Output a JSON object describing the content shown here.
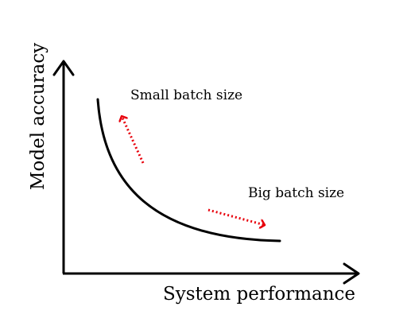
{
  "diagram": {
    "x_axis_label": "System performance",
    "y_axis_label": "Model accuracy",
    "annotations": {
      "small_batch": "Small batch size",
      "big_batch": "Big batch size"
    },
    "colors": {
      "axis": "#000000",
      "curve": "#000000",
      "arrow": "#e8000b",
      "background": "#ffffff"
    }
  }
}
